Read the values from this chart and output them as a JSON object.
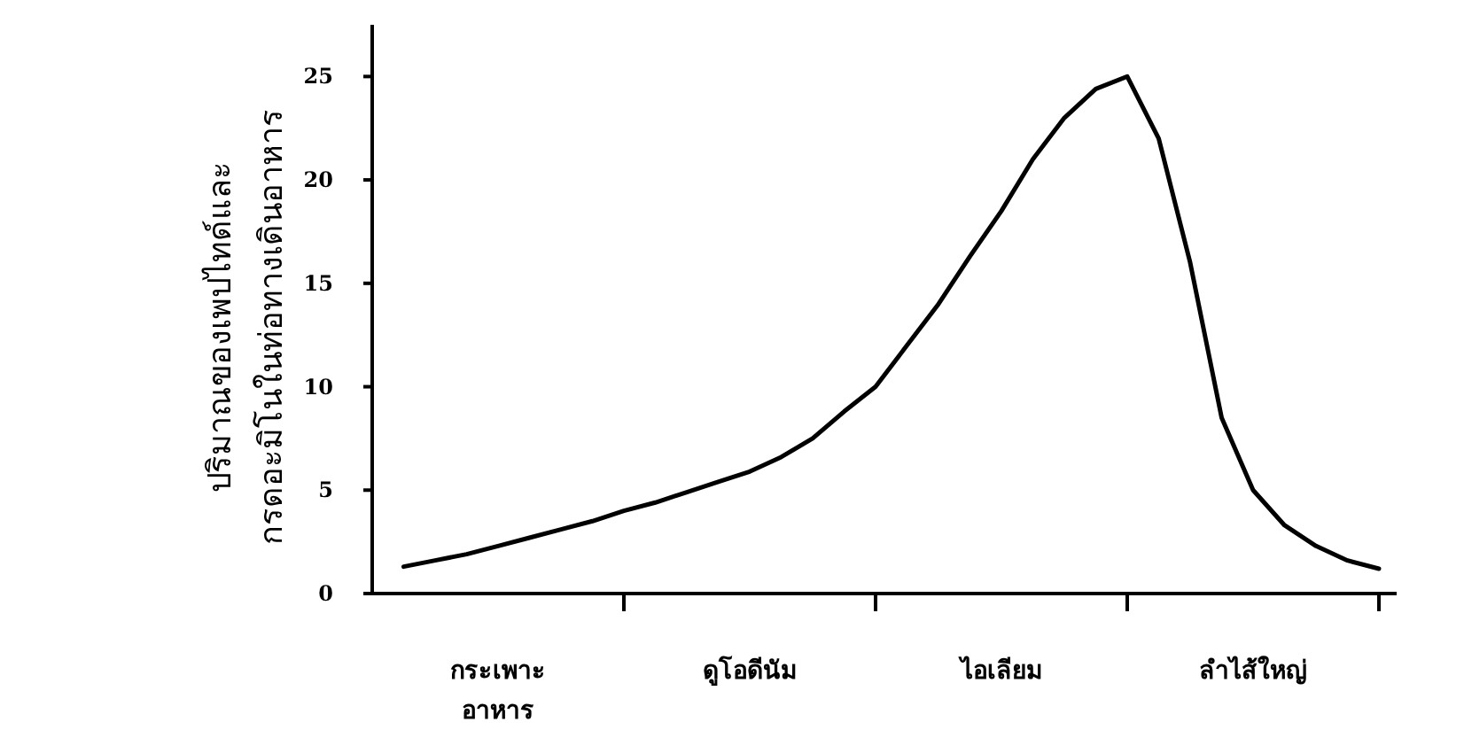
{
  "chart_data": {
    "type": "line",
    "ylabel": "ปริมาณของเพปไทด์และ\nกรดอะมิโนในท่อทางเดินอาหาร",
    "categories": [
      null,
      null,
      null,
      "กระเพาะ\nอาหาร",
      null,
      null,
      null,
      null,
      null,
      null,
      null,
      "ดูโอดีนัม",
      null,
      null,
      null,
      null,
      null,
      null,
      null,
      "ไอเลียม",
      null,
      null,
      null,
      null,
      null,
      null,
      null,
      "ลำไส้ใหญ่",
      null,
      null,
      null,
      null
    ],
    "ylim": [
      0,
      27.5
    ],
    "yticks": [
      0,
      5,
      10,
      15,
      20,
      25
    ],
    "grid": false,
    "marker": "none",
    "line_style": "solid",
    "series": [
      {
        "color": "#000000",
        "values": [
          1.3,
          1.6,
          1.9,
          2.3,
          2.7,
          3.1,
          3.5,
          4,
          4.4,
          4.9,
          5.4,
          5.9,
          6.6,
          7.5,
          8.8,
          10,
          12,
          14,
          16.3,
          18.5,
          21,
          23,
          24.4,
          25,
          22,
          16,
          8.5,
          5,
          3.3,
          2.3,
          1.6,
          1.2
        ]
      }
    ]
  }
}
